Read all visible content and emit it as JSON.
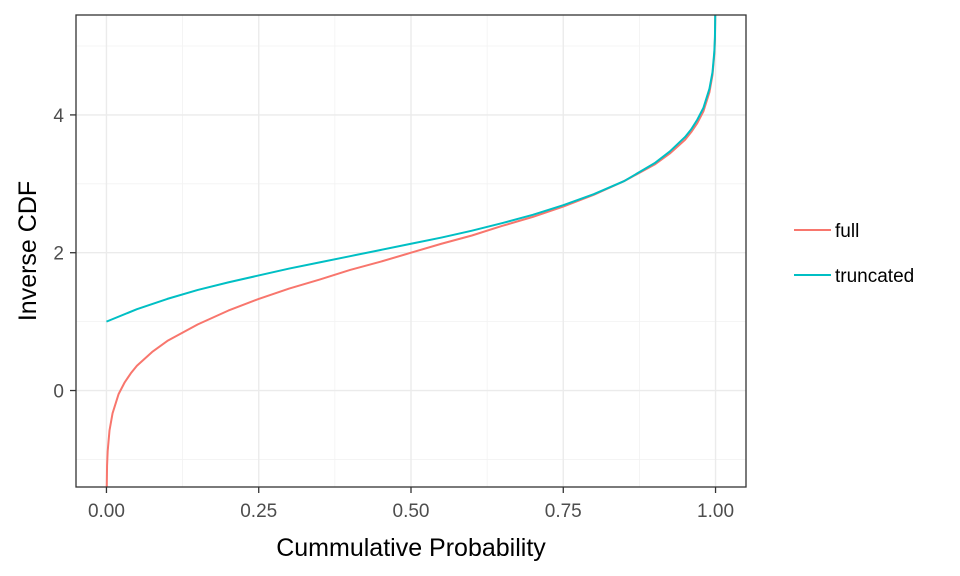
{
  "chart_data": {
    "type": "line",
    "title": "",
    "xlabel": "Cummulative Probability",
    "ylabel": "Inverse CDF",
    "xlim": [
      -0.05,
      1.05
    ],
    "ylim": [
      -1.4,
      5.45
    ],
    "x_ticks": [
      {
        "value": 0,
        "label": "0.00"
      },
      {
        "value": 0.25,
        "label": "0.25"
      },
      {
        "value": 0.5,
        "label": "0.50"
      },
      {
        "value": 0.75,
        "label": "0.75"
      },
      {
        "value": 1,
        "label": "1.00"
      }
    ],
    "y_ticks": [
      {
        "value": 0,
        "label": "0"
      },
      {
        "value": 2,
        "label": "2"
      },
      {
        "value": 4,
        "label": "4"
      }
    ],
    "grid": true,
    "legend_position": "right",
    "series": [
      {
        "name": "full",
        "color": "#F8766D",
        "points": [
          [
            0.0005,
            -1.4
          ],
          [
            0.001,
            -1.09
          ],
          [
            0.002,
            -0.88
          ],
          [
            0.005,
            -0.58
          ],
          [
            0.01,
            -0.33
          ],
          [
            0.02,
            -0.05
          ],
          [
            0.03,
            0.12
          ],
          [
            0.04,
            0.25
          ],
          [
            0.05,
            0.36
          ],
          [
            0.075,
            0.56
          ],
          [
            0.1,
            0.72
          ],
          [
            0.15,
            0.96
          ],
          [
            0.2,
            1.16
          ],
          [
            0.25,
            1.33
          ],
          [
            0.3,
            1.48
          ],
          [
            0.35,
            1.61
          ],
          [
            0.4,
            1.75
          ],
          [
            0.45,
            1.87
          ],
          [
            0.5,
            2.0
          ],
          [
            0.55,
            2.13
          ],
          [
            0.6,
            2.25
          ],
          [
            0.65,
            2.39
          ],
          [
            0.7,
            2.52
          ],
          [
            0.75,
            2.67
          ],
          [
            0.8,
            2.84
          ],
          [
            0.85,
            3.04
          ],
          [
            0.9,
            3.28
          ],
          [
            0.925,
            3.44
          ],
          [
            0.95,
            3.64
          ],
          [
            0.96,
            3.75
          ],
          [
            0.97,
            3.88
          ],
          [
            0.98,
            4.05
          ],
          [
            0.99,
            4.33
          ],
          [
            0.995,
            4.58
          ],
          [
            0.998,
            4.88
          ],
          [
            0.999,
            5.09
          ],
          [
            0.9995,
            5.45
          ]
        ]
      },
      {
        "name": "truncated",
        "color": "#00BFC4",
        "points": [
          [
            0.0,
            1.0
          ],
          [
            0.05,
            1.18
          ],
          [
            0.1,
            1.33
          ],
          [
            0.15,
            1.46
          ],
          [
            0.2,
            1.57
          ],
          [
            0.25,
            1.67
          ],
          [
            0.3,
            1.77
          ],
          [
            0.35,
            1.86
          ],
          [
            0.4,
            1.95
          ],
          [
            0.45,
            2.04
          ],
          [
            0.5,
            2.13
          ],
          [
            0.55,
            2.22
          ],
          [
            0.6,
            2.32
          ],
          [
            0.65,
            2.43
          ],
          [
            0.7,
            2.55
          ],
          [
            0.75,
            2.69
          ],
          [
            0.8,
            2.85
          ],
          [
            0.85,
            3.04
          ],
          [
            0.9,
            3.3
          ],
          [
            0.925,
            3.47
          ],
          [
            0.95,
            3.68
          ],
          [
            0.96,
            3.79
          ],
          [
            0.97,
            3.93
          ],
          [
            0.98,
            4.1
          ],
          [
            0.99,
            4.38
          ],
          [
            0.995,
            4.62
          ],
          [
            0.998,
            4.92
          ],
          [
            0.999,
            5.13
          ],
          [
            0.9995,
            5.45
          ]
        ]
      }
    ]
  }
}
